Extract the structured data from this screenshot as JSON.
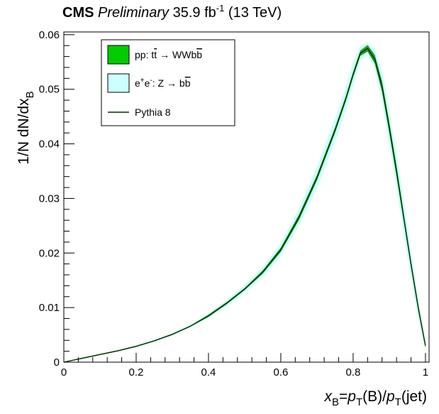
{
  "header": {
    "experiment": "CMS",
    "status": "Preliminary",
    "lumi": "35.9 fb",
    "lumi_exp": "-1",
    "energy": "(13 TeV)"
  },
  "axes": {
    "x_title": {
      "a": "x",
      "a_sub": "B",
      "b": "=",
      "c": "p",
      "c_sub": "T",
      "d": "(B)/",
      "e": "p",
      "e_sub": "T",
      "f": "(jet)"
    },
    "y_title": {
      "main": "1/N dN/dx",
      "sub": "B"
    }
  },
  "legend": {
    "entries": [
      {
        "label_pre": "pp: t",
        "label_tbar": "t",
        "label_arrow": "→",
        "label_post": " WWb",
        "label_bbar": "b",
        "color": "#00cc00"
      },
      {
        "label_pre": "e",
        "label_sup1": "+",
        "label_mid": "e",
        "label_sup2": "-",
        "label_post": ": Z → b",
        "label_bbar": "b",
        "color": "#ccffff"
      },
      {
        "label": "Pythia 8",
        "color": "#003300"
      }
    ]
  },
  "chart_data": {
    "type": "line",
    "xlabel": "x_B=p_T(B)/p_T(jet)",
    "ylabel": "1/N dN/dx_B",
    "xlim": [
      0,
      1.01
    ],
    "ylim": [
      0,
      0.0605
    ],
    "x_ticks": [
      0,
      0.2,
      0.4,
      0.6,
      0.8,
      1
    ],
    "x_tick_labels": [
      "0",
      "0.2",
      "0.4",
      "0.6",
      "0.8",
      "1"
    ],
    "y_ticks": [
      0,
      0.01,
      0.02,
      0.03,
      0.04,
      0.05,
      0.06
    ],
    "y_tick_labels": [
      "0",
      "0.01",
      "0.02",
      "0.03",
      "0.04",
      "0.05",
      "0.06"
    ],
    "legend_position": "top-left",
    "series": [
      {
        "name": "Pythia 8",
        "x": [
          0.0,
          0.05,
          0.1,
          0.15,
          0.2,
          0.25,
          0.3,
          0.35,
          0.4,
          0.45,
          0.5,
          0.55,
          0.6,
          0.65,
          0.7,
          0.75,
          0.78,
          0.8,
          0.82,
          0.84,
          0.86,
          0.88,
          0.9,
          0.92,
          0.94,
          0.96,
          0.98,
          1.0
        ],
        "y": [
          0.0,
          0.0007,
          0.0014,
          0.0021,
          0.0029,
          0.0039,
          0.0051,
          0.0066,
          0.0085,
          0.0108,
          0.0134,
          0.0165,
          0.0206,
          0.0265,
          0.0338,
          0.0425,
          0.0483,
          0.0527,
          0.0566,
          0.0575,
          0.0555,
          0.0505,
          0.043,
          0.035,
          0.0265,
          0.018,
          0.01,
          0.003
        ]
      },
      {
        "name": "pp: tt → WWbb",
        "band_halfwidth": [
          0.0,
          0.0001,
          0.0001,
          0.0001,
          0.0001,
          0.0001,
          0.0001,
          0.0001,
          0.0002,
          0.0002,
          0.0002,
          0.0003,
          0.0004,
          0.0005,
          0.0005,
          0.0005,
          0.0005,
          0.0005,
          0.0005,
          0.0006,
          0.0008,
          0.001,
          0.001,
          0.001,
          0.0008,
          0.0007,
          0.0006,
          0.0004
        ]
      },
      {
        "name": "e+e-: Z → bb",
        "band_halfwidth": [
          0.0,
          0.0001,
          0.0001,
          0.0001,
          0.0001,
          0.0002,
          0.0002,
          0.0003,
          0.0004,
          0.0006,
          0.0007,
          0.0009,
          0.0012,
          0.0016,
          0.002,
          0.0022,
          0.0022,
          0.0022,
          0.0014,
          0.001,
          0.0018,
          0.0028,
          0.0032,
          0.0032,
          0.003,
          0.0025,
          0.0018,
          0.0008
        ]
      }
    ]
  }
}
